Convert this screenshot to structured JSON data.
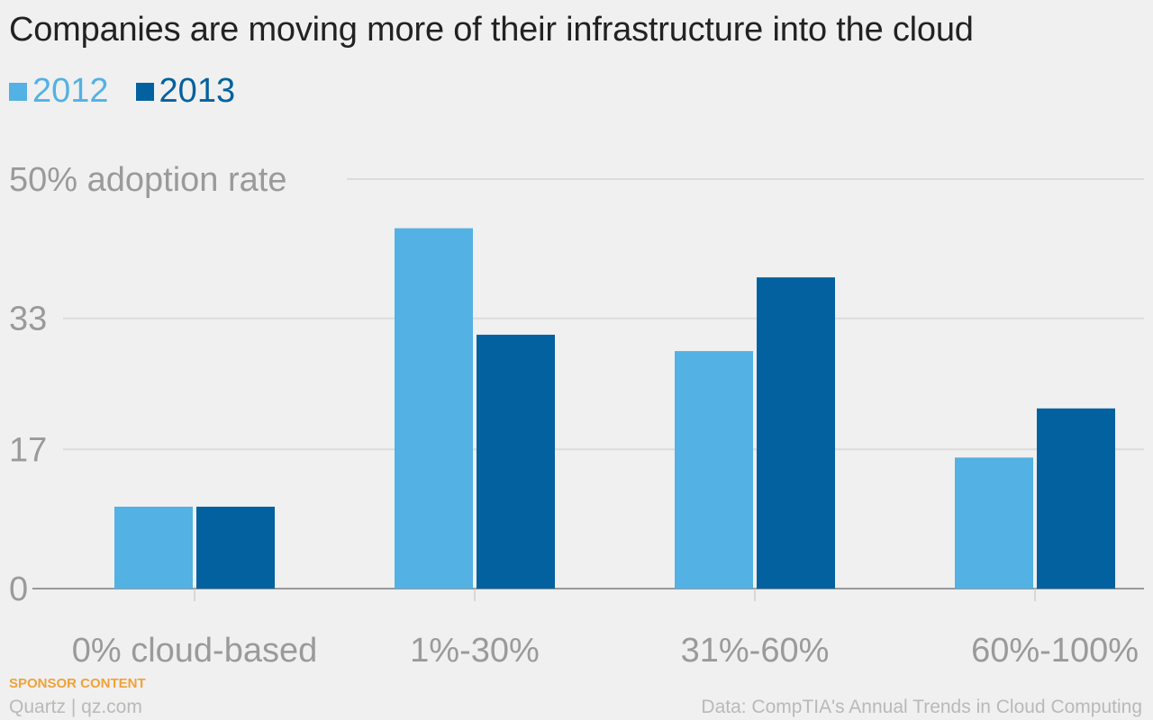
{
  "title": "Companies are moving more of their infrastructure into the cloud",
  "colors": {
    "s2012": "#53b1e4",
    "s2013": "#02619e",
    "grid": "#dcdcdc",
    "axis": "#999999",
    "tick_text": "#9a9a9a",
    "sponsor": "#f0a238",
    "credit": "#b9b9b9"
  },
  "chart_data": {
    "type": "bar",
    "title": "Companies are moving more of their infrastructure into the cloud",
    "categories": [
      "0% cloud-based",
      "1%-30%",
      "31%-60%",
      "60%-100%"
    ],
    "series": [
      {
        "name": "2012",
        "values": [
          10,
          44,
          29,
          16
        ]
      },
      {
        "name": "2013",
        "values": [
          10,
          31,
          38,
          22
        ]
      }
    ],
    "ylim": [
      0,
      50
    ],
    "yticks": [
      0,
      17,
      33,
      50
    ],
    "ytick_labels": [
      "0",
      "17",
      "33",
      "50% adoption rate"
    ],
    "grid": true,
    "legend": "top-left",
    "xlabel": "",
    "ylabel": ""
  },
  "footer": {
    "sponsor": "SPONSOR CONTENT",
    "credit": "Quartz | qz.com",
    "source": "Data: CompTIA's Annual Trends in Cloud Computing"
  }
}
